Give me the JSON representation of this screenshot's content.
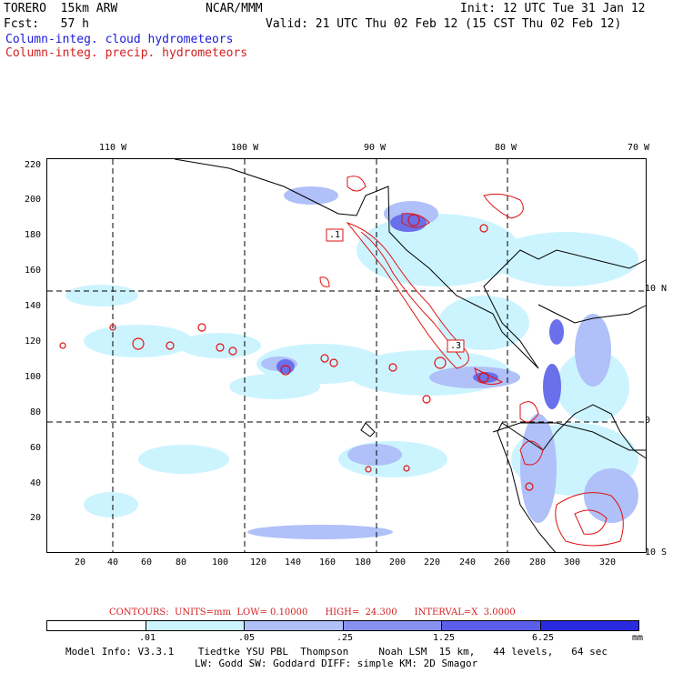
{
  "header": {
    "model": "TORERO  15km ARW",
    "center": "NCAR/MMM",
    "init": "Init: 12 UTC Tue 31 Jan 12",
    "fcst": "Fcst:   57 h",
    "valid": "Valid: 21 UTC Thu 02 Feb 12 (15 CST Thu 02 Feb 12)",
    "field1": "Column-integ. cloud hydrometeors",
    "field2": "Column-integ. precip. hydrometeors"
  },
  "map": {
    "lon_labels": [
      "110 W",
      "100 W",
      "90 W",
      "80 W",
      "70 W"
    ],
    "lat_labels": [
      "10 N",
      "0",
      "10 S"
    ],
    "y_ticks": [
      "220",
      "200",
      "180",
      "160",
      "140",
      "120",
      "100",
      "80",
      "60",
      "40",
      "20"
    ],
    "x_ticks": [
      "20",
      "40",
      "60",
      "80",
      "100",
      "120",
      "140",
      "160",
      "180",
      "200",
      "220",
      "240",
      "260",
      "280",
      "300",
      "320"
    ],
    "box_labels": [
      ".1",
      ".3"
    ],
    "colors": {
      "coast": "#000000",
      "grid": "#000000",
      "precip": "#e01010"
    }
  },
  "contours": "CONTOURS:  UNITS=mm  LOW= 0.10000      HIGH=  24.300      INTERVAL=X  3.0000",
  "colorbar": {
    "labels": [
      ".01",
      ".05",
      ".25",
      "1.25",
      "6.25"
    ],
    "unit": "mm",
    "colors": [
      "#ffffff",
      "#ccf4ff",
      "#b0c0f8",
      "#8890f0",
      "#5a5ee8",
      "#2a2ae0"
    ]
  },
  "model_info": {
    "line1": "Model Info: V3.3.1    Tiedtke YSU PBL  Thompson     Noah LSM  15 km,   44 levels,   64 sec",
    "line2": "LW: Godd SW: Goddard DIFF: simple KM: 2D Smagor"
  }
}
